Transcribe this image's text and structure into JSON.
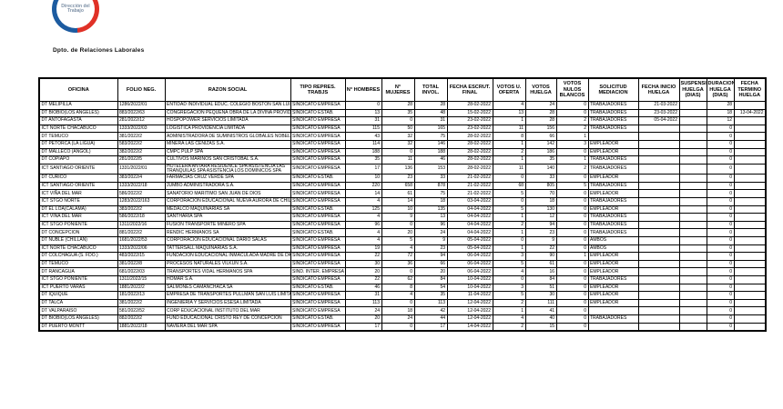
{
  "logo": {
    "line1": "Dirección del",
    "line2": "Trabajo"
  },
  "department_label": "Dpto. de Relaciones Laborales",
  "colors": {
    "logo_blue": "#1c5ba0",
    "logo_red": "#e03127",
    "table_border": "#000000"
  },
  "table": {
    "headers": [
      "OFICINA",
      "FOLIO NEG.",
      "RAZON SOCIAL",
      "TIPO REPRES. TRABJS",
      "N° HOMBRES",
      "N° MUJERES",
      "TOTAL INVOL.",
      "FECHA ESCRUT. FINAL",
      "VOTOS U. OFERTA",
      "VOTOS HUELGA",
      "VOTOS NULOS BLANCOS",
      "SOLICITUD MEDIACION",
      "FECHA INICIO HUELGA",
      "SUSPENSION HUELGA (DIAS)",
      "DURACION HUELGA (DIAS)",
      "FECHA TERMINO HUELGA"
    ],
    "rows": [
      [
        "DT MELIPILLA",
        "1286/2022/01",
        "ENTIDAD INDIVIDUAL EDUC. COLEGIO BOSTON SAN LUIS CURACAVI",
        "SINDICATO EMPRESA",
        "0",
        "28",
        "28",
        "28-02-2022",
        "4",
        "24",
        "0",
        "TRABAJADORES",
        "21-03-2022",
        "",
        "28",
        ""
      ],
      [
        "DT BIOBIO(LOS ANGELES)",
        "883/2022/63",
        "CONGREGACION PEQUEÑA OBRA DE LA DIVINA PROVIDENCIA",
        "SINDICATO ESTAB.",
        "13",
        "35",
        "48",
        "15-02-2022",
        "13",
        "28",
        "0",
        "TRABAJADORES",
        "23-03-2022",
        "",
        "18",
        "13-04-2022"
      ],
      [
        "DT ANTOFAGASTA",
        "281/2022/12",
        "HOSPOPOWER SERVICIOS LIMITADA",
        "SINDICATO EMPRESA",
        "31",
        "0",
        "31",
        "23-02-2022",
        "1",
        "28",
        "2",
        "TRABAJADORES",
        "05-04-2022",
        "",
        "12",
        ""
      ],
      [
        "ICT NORTE CHACABUCO",
        "1333/2022/03",
        "LOGISTICA PROVIDENCIA LIMITADA",
        "SINDICATO EMPRESA",
        "115",
        "50",
        "165",
        "23-02-2022",
        "11",
        "156",
        "2",
        "TRABAJADORES",
        "",
        "",
        "0",
        ""
      ],
      [
        "DT TEMUCO",
        "381/2022/2",
        "ADMINISTRADORA DE SUMINISTROS GLOBALES NOBEL LIMITADA",
        "SINDICATO EMPRESA",
        "43",
        "32",
        "75",
        "28-02-2022",
        "8",
        "66",
        "1",
        "",
        "",
        "",
        "0",
        ""
      ],
      [
        "DT PETORCA (LA LIGUA)",
        "583/2022/2",
        "MINERA LAS CENIZAS S.A.",
        "SINDICATO EMPRESA",
        "114",
        "32",
        "146",
        "28-02-2022",
        "1",
        "142",
        "3",
        "EMPLEADOR",
        "",
        "",
        "0",
        ""
      ],
      [
        "DT MALLECO (ANGOL)",
        "382/2022/2",
        "CMPC PULP SPA",
        "SINDICATO EMPRESA",
        "188",
        "0",
        "188",
        "28-02-2022",
        "2",
        "186",
        "0",
        "EMPLEADOR",
        "",
        "",
        "0",
        ""
      ],
      [
        "DT COPIAPO",
        "281/2022/5",
        "CULTIVOS MARINOS SAN CRISTOBAL S.A.",
        "SINDICATO EMPRESA",
        "35",
        "11",
        "46",
        "28-02-2022",
        "1",
        "35",
        "1",
        "TRABAJADORES",
        "",
        "",
        "0",
        ""
      ],
      [
        "ICT SANTIAGO ORIENTE",
        "1331/2022/01",
        "HOTELERA ANTARA RESIDENCE SPA  ASISTENCIA LAS TRANQUILAS SPA  ASISTENCIA LOS DOMINICOS SPA",
        "SINDICATO EMPRESA",
        "17",
        "136",
        "153",
        "28-02-2022",
        "11",
        "140",
        "2",
        "TRABAJADORES",
        "",
        "",
        "0",
        ""
      ],
      [
        "DT CURICO",
        "383/2022/4",
        "FARMACIAS CRUZ VERDE SPA",
        "SINDICATO ESTAB.",
        "10",
        "23",
        "33",
        "21-02-2022",
        "0",
        "33",
        "0",
        "EMPLEADOR",
        "",
        "",
        "0",
        ""
      ],
      [
        "ICT SANTIAGO ORIENTE",
        "1333/2022/18",
        "JUMBO ADMINISTRADORA S.A.",
        "SINDICATO EMPRESA",
        "220",
        "658",
        "878",
        "21-02-2022",
        "68",
        "805",
        "5",
        "TRABAJADORES",
        "",
        "",
        "0",
        ""
      ],
      [
        "ICT VIÑA DEL MAR",
        "586/2022/2",
        "SANATORIO MARITIMO SAN JUAN DE DIOS",
        "SINDICATO EMPRESA",
        "14",
        "61",
        "75",
        "21-02-2022",
        "5",
        "70",
        "0",
        "EMPLEADOR",
        "",
        "",
        "0",
        ""
      ],
      [
        "ICT STGO NORTE",
        "1283/2022/163",
        "CORPORACION EDUCACIONAL NUEVA AURORA DE CHILE",
        "SINDICATO EMPRESA",
        "4",
        "14",
        "18",
        "03-04-2022",
        "0",
        "18",
        "0",
        "TRABAJADORES",
        "",
        "",
        "0",
        ""
      ],
      [
        "DT EL LOA(CALAMA)",
        "383/2022/2",
        "MEDALCO MAQUINARIAS SA",
        "SINDICATO ESTAB.",
        "125",
        "10",
        "135",
        "04-04-2022",
        "5",
        "130",
        "0",
        "EMPLEADOR",
        "",
        "",
        "0",
        ""
      ],
      [
        "ICT VIÑA DEL MAR",
        "586/2022/18",
        "SANTHARIA SPA",
        "SINDICATO EMPRESA",
        "4",
        "9",
        "13",
        "04-04-2022",
        "1",
        "12",
        "0",
        "TRABAJADORES",
        "",
        "",
        "0",
        ""
      ],
      [
        "ICT STGO PONIENTE",
        "1311/2022/16",
        "FUSION TRANSPORTE MINERO SPA",
        "SINDICATO EMPRESA",
        "96",
        "0",
        "96",
        "04-04-2022",
        "2",
        "94",
        "0",
        "TRABAJADORES",
        "",
        "",
        "0",
        ""
      ],
      [
        "DT CONCEPCION",
        "881/2022/2",
        "RENDIC HERMANOS SA",
        "SINDICATO ESTAB.",
        "4",
        "20",
        "24",
        "04-04-2022",
        "1",
        "23",
        "0",
        "TRABAJADORES",
        "",
        "",
        "0",
        ""
      ],
      [
        "DT ÑUBLE (CHILLAN)",
        "1681/2022/53",
        "CORPORACION EDUCACIONAL DARIO SALAS",
        "SINDICATO EMPRESA",
        "4",
        "5",
        "9",
        "05-04-2022",
        "0",
        "9",
        "0",
        "AMBOS",
        "",
        "",
        "0",
        ""
      ],
      [
        "ICT NORTE CHACABUCO",
        "1333/2022/06",
        "TATTERSALL MAQUINARIAS S.A.",
        "SINDICATO EMPRESA",
        "19",
        "4",
        "23",
        "05-04-2022",
        "1",
        "22",
        "0",
        "AMBOS",
        "",
        "",
        "0",
        ""
      ],
      [
        "DT COLCHAGUA (S. FDO.)",
        "483/2022/15",
        "FUNDACION EDUCACIONAL INMACULADA MADRE DE DIOS",
        "SINDICATO EMPRESA",
        "22",
        "72",
        "94",
        "06-04-2022",
        "3",
        "90",
        "1",
        "EMPLEADOR",
        "",
        "",
        "0",
        ""
      ],
      [
        "DT TEMUCO",
        "381/2022/8",
        "PROCESOS NATURALES VILKUN S.A.",
        "SINDICATO EMPRESA",
        "30",
        "36",
        "66",
        "06-04-2022",
        "5",
        "61",
        "0",
        "EMPLEADOR",
        "",
        "",
        "0",
        ""
      ],
      [
        "DT RANCAGUA",
        "681/2022/03",
        "TRANSPORTES VIDAL HERMANOS SPA",
        "SIND. INTER. EMPRESA",
        "20",
        "0",
        "20",
        "06-04-2022",
        "4",
        "16",
        "0",
        "EMPLEADOR",
        "",
        "",
        "0",
        ""
      ],
      [
        "ICT STGO PONIENTE",
        "1311/2022/15",
        "HOMAR S.A.",
        "SINDICATO EMPRESA",
        "22",
        "62",
        "84",
        "10-04-2022",
        "0",
        "84",
        "0",
        "TRABAJADORES",
        "",
        "",
        "0",
        ""
      ],
      [
        "ICT PUERTO VARAS",
        "1881/2022/2",
        "SALMONES CAMANCHACA SA",
        "SINDICATO ESTAB.",
        "46",
        "8",
        "54",
        "10-04-2022",
        "3",
        "51",
        "0",
        "EMPLEADOR",
        "",
        "",
        "0",
        ""
      ],
      [
        "DT IQUIQUE",
        "181/2022/13",
        "EMPRESA DE TRANSPORTES PULLMAN SAN LUIS LIMITADA",
        "SINDICATO EMPRESA",
        "31",
        "4",
        "35",
        "11-04-2022",
        "5",
        "30",
        "0",
        "EMPLEADOR",
        "",
        "",
        "0",
        ""
      ],
      [
        "DT TALCA",
        "381/2022/2",
        "INGENIERIA Y SERVICIOS ESESA LIMITADA",
        "SINDICATO EMPRESA",
        "113",
        "0",
        "113",
        "12-04-2022",
        "2",
        "111",
        "0",
        "EMPLEADOR",
        "",
        "",
        "0",
        ""
      ],
      [
        "DT VALPARAISO",
        "581/2022/52",
        "CORP EDUCACIONAL INSTITUTO DEL MAR",
        "SINDICATO EMPRESA",
        "24",
        "18",
        "42",
        "12-04-2022",
        "1",
        "41",
        "0",
        "",
        "",
        "",
        "0",
        ""
      ],
      [
        "DT BIOBIO(LOS ANGELES)",
        "882/2022/2",
        "FUND EDUCACIONAL CRISTO REY DE CONCEPCION",
        "SINDICATO ESTAB.",
        "20",
        "24",
        "44",
        "12-04-2022",
        "4",
        "40",
        "0",
        "TRABAJADORES",
        "",
        "",
        "0",
        ""
      ],
      [
        "DT PUERTO MONTT",
        "1881/2022/18",
        "NAVIERA DEL MAR SPA",
        "SINDICATO EMPRESA",
        "17",
        "0",
        "17",
        "14-04-2022",
        "2",
        "15",
        "0",
        "",
        "",
        "",
        "0",
        ""
      ]
    ]
  }
}
